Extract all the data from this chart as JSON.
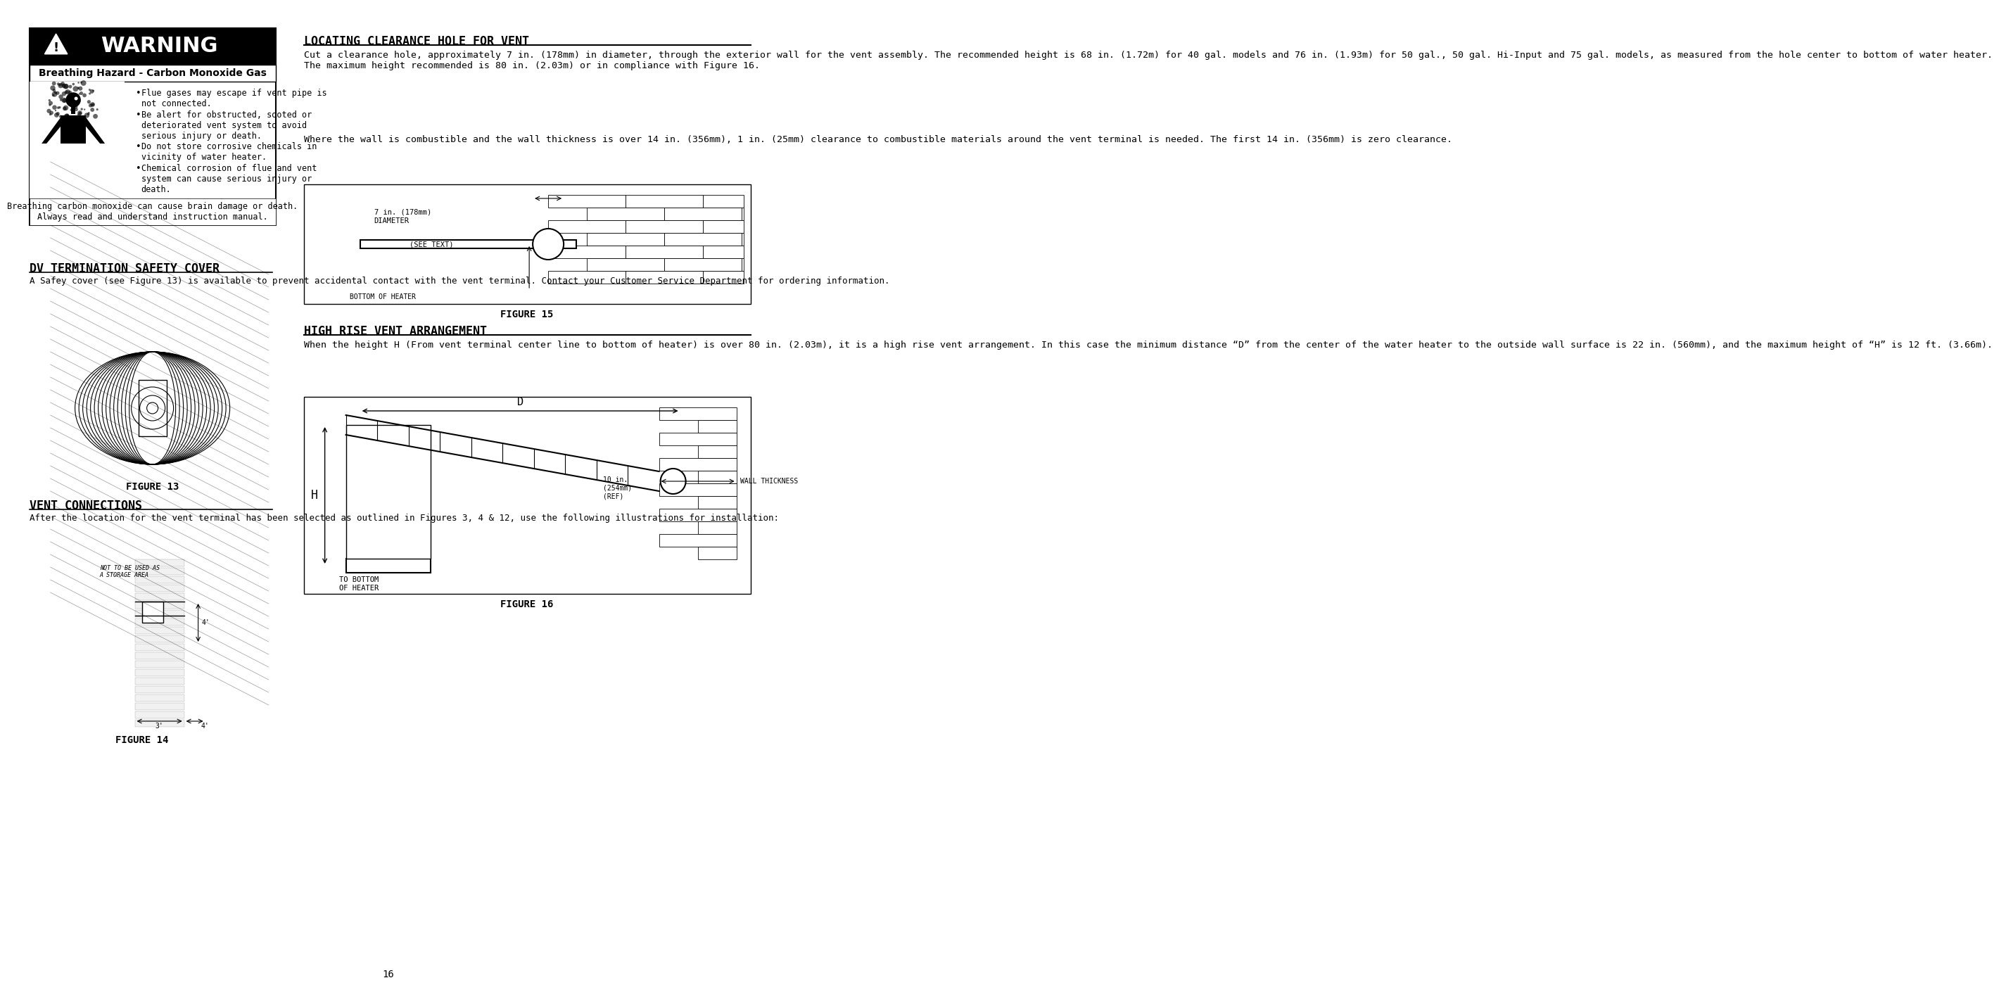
{
  "page_number": "16",
  "bg_color": "#ffffff",
  "warning_box": {
    "title": "⚠ WARNING",
    "subtitle": "Breathing Hazard - Carbon Monoxide Gas",
    "bullets": [
      "Flue gases may escape if vent pipe is not connected.",
      "Be alert for obstructed, sooted or deteriorated vent system to avoid serious injury or death.",
      "Do not store corrosive chemicals in vicinity of water heater.",
      "Chemical corrosion of flue and vent system can cause serious injury or death."
    ],
    "footer": "Breathing carbon monoxide can cause brain damage or death.\nAlways read and understand instruction manual."
  },
  "dv_termination": {
    "heading": "DV TERMINATION SAFETY COVER",
    "body": "A Safey cover (see Figure 13) is available to prevent accidental contact with the vent terminal. Contact your Customer Service Department for ordering information.",
    "figure_label": "FIGURE 13"
  },
  "vent_connections": {
    "heading": "VENT CONNECTIONS",
    "body": "After the location for the vent terminal has been selected as outlined in Figures 3, 4 & 12, use the following illustrations for installation:",
    "figure_label": "FIGURE 14"
  },
  "locating_clearance": {
    "heading": "LOCATING CLEARANCE HOLE FOR VENT",
    "body1": "Cut a clearance hole, approximately 7 in. (178mm) in diameter, through the exterior wall for the vent assembly. The recommended height is 68 in. (1.72m) for 40 gal. models and 76 in. (1.93m) for 50 gal., 50 gal. Hi-Input and 75 gal. models, as measured from the hole center to bottom of water heater. The maximum height recommended is 80 in. (2.03m) or in compliance with Figure 16.",
    "body2": "Where the wall is combustible and the wall thickness is over 14 in. (356mm), 1 in. (25mm) clearance to combustible materials around the vent terminal is needed. The first 14 in. (356mm) is zero clearance.",
    "figure_label": "FIGURE 15",
    "fig15_labels": [
      "7 in. (178mm)",
      "DIAMETER",
      "(SEE TEXT)",
      "BOTTOM OF HEATER"
    ]
  },
  "high_rise_vent": {
    "heading": "HIGH RISE VENT ARRANGEMENT",
    "body": "When the height H (From vent terminal center line to bottom of heater) is over 80 in. (2.03m), it is a high rise vent arrangement. In this case the minimum distance “D” from the center of the water heater to the outside wall surface is 22 in. (560mm), and the maximum height of “H” is 12 ft. (3.66m).",
    "figure_label": "FIGURE 16",
    "fig16_labels": [
      "D",
      "10 in.\n(254mm)\n(REF)",
      "WALL THICKNESS",
      "H",
      "TO BOTTOM\nOF HEATER"
    ]
  }
}
